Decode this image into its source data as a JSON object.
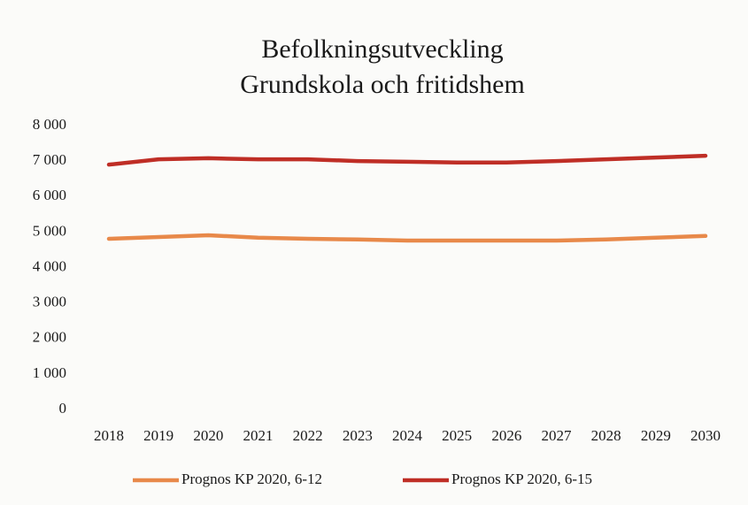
{
  "chart_data": {
    "type": "line",
    "title": "Befolkningsutveckling",
    "subtitle": "Grundskola och fritidshem",
    "categories": [
      "2018",
      "2019",
      "2020",
      "2021",
      "2022",
      "2023",
      "2024",
      "2025",
      "2026",
      "2027",
      "2028",
      "2029",
      "2030"
    ],
    "series": [
      {
        "name": "Prognos KP 2020, 6-12",
        "color": "#e8894a",
        "values": [
          4810,
          4860,
          4910,
          4840,
          4810,
          4790,
          4760,
          4760,
          4760,
          4760,
          4790,
          4840,
          4890
        ]
      },
      {
        "name": "Prognos KP 2020, 6-15",
        "color": "#bf2e26",
        "values": [
          6900,
          7050,
          7080,
          7050,
          7050,
          7000,
          6980,
          6960,
          6960,
          7000,
          7050,
          7100,
          7150
        ]
      }
    ],
    "ylim": [
      0,
      8000
    ],
    "yticks": [
      0,
      {
        "value": 1000,
        "label": "1 000"
      },
      {
        "value": 2000,
        "label": "2 000"
      },
      {
        "value": 3000,
        "label": "3 000"
      },
      {
        "value": 4000,
        "label": "4 000"
      },
      {
        "value": 5000,
        "label": "5 000"
      },
      {
        "value": 6000,
        "label": "6 000"
      },
      {
        "value": 7000,
        "label": "7 000"
      },
      {
        "value": 8000,
        "label": "8 000"
      }
    ],
    "grid": false,
    "legend": "bottom"
  }
}
